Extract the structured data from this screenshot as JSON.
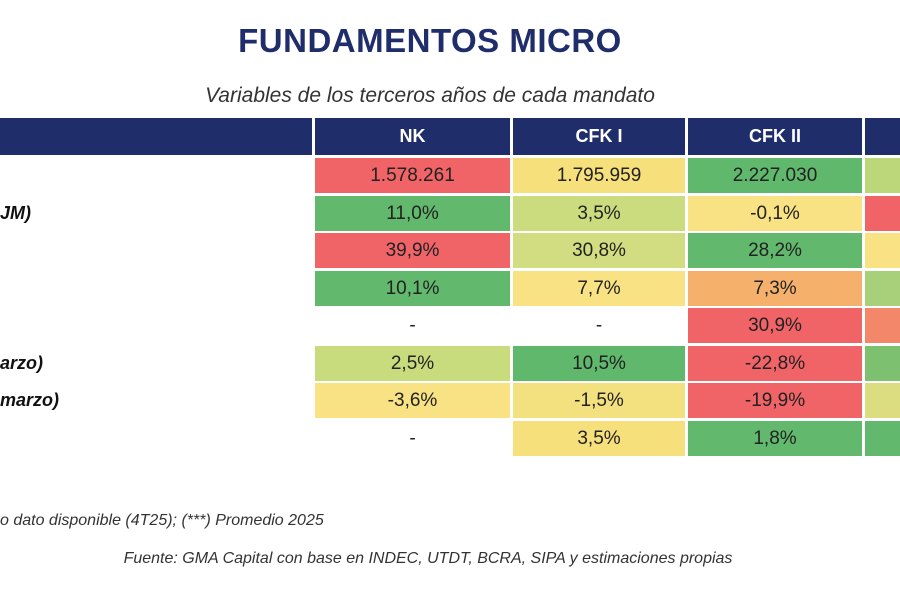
{
  "header": {
    "title": "FUNDAMENTOS MICRO",
    "subtitle": "Variables de los terceros años de cada mandato"
  },
  "table": {
    "columns": [
      "NK",
      "CFK I",
      "CFK II"
    ],
    "rows": [
      {
        "cells": [
          {
            "text": "1.578.261",
            "color": "#f06468"
          },
          {
            "text": "1.795.959",
            "color": "#f6e07c"
          },
          {
            "text": "2.227.030",
            "color": "#5fb86c"
          },
          {
            "color": "#bcd67a"
          }
        ]
      },
      {
        "label": "JM)",
        "cells": [
          {
            "text": "11,0%",
            "color": "#62b86c"
          },
          {
            "text": "3,5%",
            "color": "#cbdc7f"
          },
          {
            "text": "-0,1%",
            "color": "#f8e283"
          },
          {
            "color": "#f06468"
          }
        ]
      },
      {
        "cells": [
          {
            "text": "39,9%",
            "color": "#f06468"
          },
          {
            "text": "30,8%",
            "color": "#d2dc80"
          },
          {
            "text": "28,2%",
            "color": "#62b86c"
          },
          {
            "color": "#f8e283"
          }
        ]
      },
      {
        "cells": [
          {
            "text": "10,1%",
            "color": "#62b86c"
          },
          {
            "text": "7,7%",
            "color": "#f8e283"
          },
          {
            "text": "7,3%",
            "color": "#f5b06c"
          },
          {
            "color": "#a8d07a"
          }
        ]
      },
      {
        "cells": [
          {
            "text": "-",
            "color": "#ffffff"
          },
          {
            "text": "-",
            "color": "#ffffff"
          },
          {
            "text": "30,9%",
            "color": "#f06468"
          },
          {
            "color": "#f2876a"
          }
        ]
      },
      {
        "label": "arzo)",
        "cells": [
          {
            "text": "2,5%",
            "color": "#c9dc7d"
          },
          {
            "text": "10,5%",
            "color": "#5fb86c"
          },
          {
            "text": "-22,8%",
            "color": "#f06468"
          },
          {
            "color": "#7cc070"
          }
        ]
      },
      {
        "label": "marzo)",
        "cells": [
          {
            "text": "-3,6%",
            "color": "#f8e283"
          },
          {
            "text": "-1,5%",
            "color": "#f3e07f"
          },
          {
            "text": "-19,9%",
            "color": "#f06468"
          },
          {
            "color": "#dcdc80"
          }
        ]
      },
      {
        "cells": [
          {
            "text": "-",
            "color": "#ffffff"
          },
          {
            "text": "3,5%",
            "color": "#f6e07c"
          },
          {
            "text": "1,8%",
            "color": "#62b86c"
          },
          {
            "color": "#62b86c"
          }
        ]
      }
    ]
  },
  "footer": {
    "note": "o dato disponible (4T25); (***) Promedio 2025",
    "source": "Fuente: GMA Capital con base en INDEC, UTDT, BCRA, SIPA y estimaciones propias"
  }
}
